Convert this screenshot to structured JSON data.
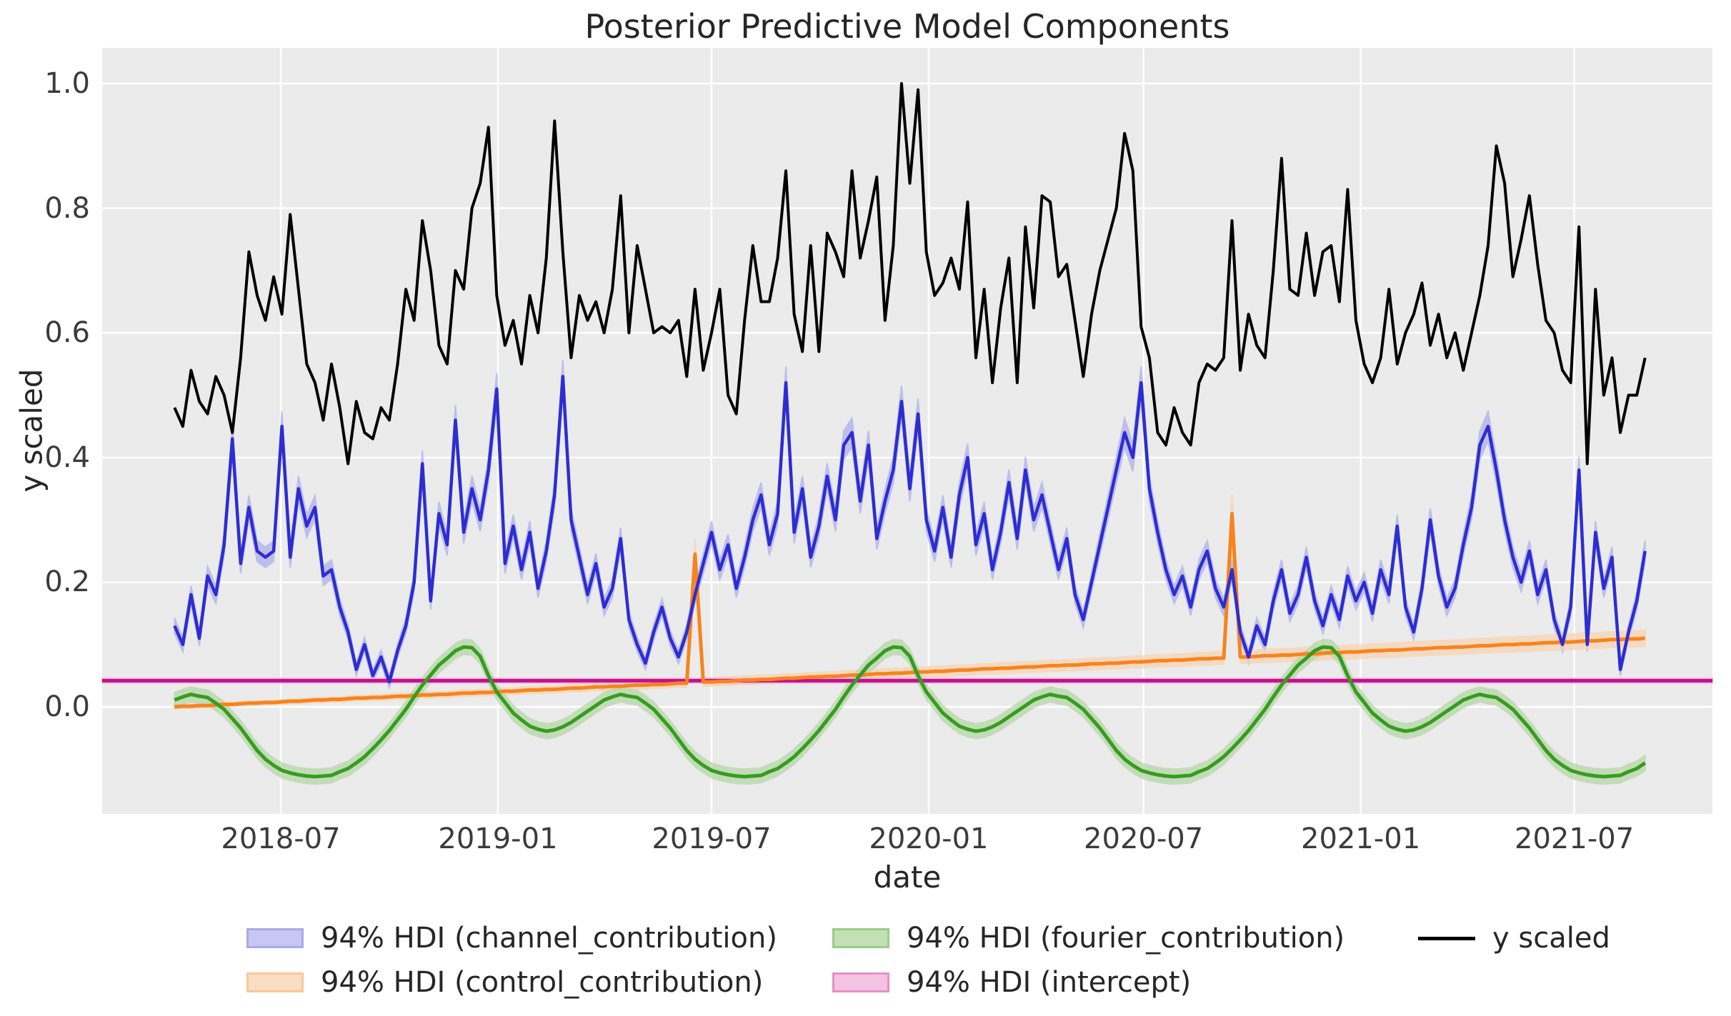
{
  "title": "Posterior Predictive Model Components",
  "xlabel": "date",
  "ylabel": "y scaled",
  "colors": {
    "figure_bg": "#ffffff",
    "plot_bg": "#ebebeb",
    "grid": "#ffffff",
    "y_scaled_line": "#000000",
    "channel_line": "#2d2dd2",
    "channel_band": "#b0b0ec",
    "control_line": "#f8831d",
    "control_band": "#f9d4b2",
    "fourier_line": "#379c1f",
    "fourier_band": "#b5d8a8",
    "intercept_line": "#c1118c",
    "intercept_band": "#eeb2da",
    "tick_text": "#3b3b3b",
    "label_text": "#262626"
  },
  "legend": {
    "items": [
      {
        "label": "94% HDI (channel_contribution)",
        "marker": "patch",
        "fill": "#c7c7f2",
        "edge": "#a9a9e8",
        "col": 0,
        "row": 0
      },
      {
        "label": "94% HDI (control_contribution)",
        "marker": "patch",
        "fill": "#faddc2",
        "edge": "#fbc79a",
        "col": 0,
        "row": 1
      },
      {
        "label": "94% HDI (fourier_contribution)",
        "marker": "patch",
        "fill": "#c2e0b4",
        "edge": "#98cc86",
        "col": 1,
        "row": 0
      },
      {
        "label": "94% HDI (intercept)",
        "marker": "patch",
        "fill": "#f3c3e2",
        "edge": "#e68fc8",
        "col": 1,
        "row": 1
      },
      {
        "label": "y scaled",
        "marker": "line",
        "fill": "#000000",
        "edge": "#000000",
        "col": 2,
        "row": 0
      }
    ]
  },
  "chart_data": {
    "type": "line",
    "title": "Posterior Predictive Model Components",
    "xlabel": "date",
    "ylabel": "y scaled",
    "grid": true,
    "legend_position": "below",
    "x_start_date": "2018-04-02",
    "x_freq_days": 7,
    "n_points": 179,
    "x_end_date": "2021-08-30",
    "ylim": [
      -0.171,
      1.056
    ],
    "xlim_dates": [
      "2018-01-31",
      "2021-10-26"
    ],
    "y_ticks": [
      "0.0",
      "0.2",
      "0.4",
      "0.6",
      "0.8",
      "1.0"
    ],
    "y_tick_values": [
      0.0,
      0.2,
      0.4,
      0.6,
      0.8,
      1.0
    ],
    "x_ticks": [
      "2018-07",
      "2019-01",
      "2019-07",
      "2020-01",
      "2020-07",
      "2021-01",
      "2021-07"
    ],
    "x_tick_day_offsets": [
      90,
      274,
      455,
      639,
      821,
      1005,
      1186
    ],
    "series": [
      {
        "name": "channel_contribution",
        "legend": "94% HDI (channel_contribution)",
        "hdi": "94%",
        "band_half_width": {
          "a": 0.008,
          "b": 0.035
        },
        "values": [
          0.13,
          0.1,
          0.18,
          0.11,
          0.21,
          0.18,
          0.26,
          0.43,
          0.23,
          0.32,
          0.25,
          0.24,
          0.25,
          0.45,
          0.24,
          0.35,
          0.29,
          0.32,
          0.21,
          0.22,
          0.16,
          0.12,
          0.06,
          0.1,
          0.05,
          0.08,
          0.04,
          0.09,
          0.13,
          0.2,
          0.39,
          0.17,
          0.31,
          0.26,
          0.46,
          0.28,
          0.35,
          0.3,
          0.38,
          0.51,
          0.23,
          0.29,
          0.22,
          0.28,
          0.19,
          0.25,
          0.34,
          0.53,
          0.3,
          0.24,
          0.18,
          0.23,
          0.16,
          0.19,
          0.27,
          0.14,
          0.1,
          0.07,
          0.12,
          0.16,
          0.11,
          0.08,
          0.12,
          0.18,
          0.23,
          0.28,
          0.22,
          0.26,
          0.19,
          0.24,
          0.3,
          0.34,
          0.26,
          0.31,
          0.52,
          0.28,
          0.35,
          0.24,
          0.29,
          0.37,
          0.3,
          0.42,
          0.44,
          0.33,
          0.42,
          0.27,
          0.33,
          0.38,
          0.49,
          0.35,
          0.47,
          0.3,
          0.25,
          0.32,
          0.24,
          0.34,
          0.4,
          0.26,
          0.31,
          0.22,
          0.28,
          0.36,
          0.27,
          0.38,
          0.3,
          0.34,
          0.28,
          0.22,
          0.27,
          0.18,
          0.14,
          0.2,
          0.26,
          0.32,
          0.38,
          0.44,
          0.4,
          0.52,
          0.35,
          0.28,
          0.22,
          0.18,
          0.21,
          0.16,
          0.22,
          0.25,
          0.19,
          0.16,
          0.22,
          0.12,
          0.08,
          0.13,
          0.1,
          0.17,
          0.22,
          0.15,
          0.18,
          0.24,
          0.17,
          0.13,
          0.18,
          0.14,
          0.21,
          0.17,
          0.2,
          0.15,
          0.22,
          0.18,
          0.29,
          0.16,
          0.12,
          0.19,
          0.3,
          0.21,
          0.16,
          0.19,
          0.26,
          0.32,
          0.42,
          0.45,
          0.38,
          0.3,
          0.24,
          0.2,
          0.25,
          0.18,
          0.22,
          0.14,
          0.1,
          0.16,
          0.38,
          0.1,
          0.28,
          0.19,
          0.24,
          0.06,
          0.12,
          0.17,
          0.25
        ]
      },
      {
        "name": "control_contribution",
        "legend": "94% HDI (control_contribution)",
        "hdi": "94%",
        "band_half_width": {
          "a": 0.003,
          "b": 0.09
        },
        "spikes": [
          {
            "date": "2019-06-17",
            "index": 63,
            "peak": 0.245
          },
          {
            "date": "2020-09-14",
            "index": 128,
            "peak": 0.31
          }
        ],
        "values": [
          0.0,
          0.001,
          0.001,
          0.002,
          0.002,
          0.003,
          0.004,
          0.004,
          0.005,
          0.006,
          0.006,
          0.007,
          0.007,
          0.008,
          0.009,
          0.009,
          0.01,
          0.011,
          0.011,
          0.012,
          0.012,
          0.013,
          0.014,
          0.014,
          0.015,
          0.015,
          0.016,
          0.017,
          0.017,
          0.018,
          0.019,
          0.019,
          0.02,
          0.02,
          0.021,
          0.022,
          0.022,
          0.023,
          0.023,
          0.024,
          0.025,
          0.025,
          0.026,
          0.027,
          0.027,
          0.028,
          0.028,
          0.029,
          0.03,
          0.03,
          0.031,
          0.032,
          0.032,
          0.033,
          0.033,
          0.034,
          0.035,
          0.035,
          0.036,
          0.036,
          0.037,
          0.038,
          0.038,
          0.245,
          0.04,
          0.04,
          0.041,
          0.041,
          0.042,
          0.043,
          0.043,
          0.044,
          0.044,
          0.045,
          0.046,
          0.046,
          0.047,
          0.048,
          0.048,
          0.049,
          0.049,
          0.05,
          0.051,
          0.051,
          0.052,
          0.053,
          0.053,
          0.054,
          0.054,
          0.055,
          0.056,
          0.056,
          0.057,
          0.057,
          0.058,
          0.059,
          0.059,
          0.06,
          0.061,
          0.061,
          0.062,
          0.062,
          0.063,
          0.064,
          0.064,
          0.065,
          0.066,
          0.066,
          0.067,
          0.067,
          0.068,
          0.069,
          0.069,
          0.07,
          0.07,
          0.071,
          0.072,
          0.072,
          0.073,
          0.074,
          0.074,
          0.075,
          0.075,
          0.076,
          0.077,
          0.077,
          0.078,
          0.078,
          0.31,
          0.08,
          0.08,
          0.081,
          0.082,
          0.082,
          0.083,
          0.083,
          0.084,
          0.085,
          0.085,
          0.086,
          0.087,
          0.087,
          0.088,
          0.088,
          0.089,
          0.09,
          0.09,
          0.091,
          0.091,
          0.092,
          0.093,
          0.093,
          0.094,
          0.095,
          0.095,
          0.096,
          0.096,
          0.097,
          0.098,
          0.098,
          0.099,
          0.1,
          0.1,
          0.101,
          0.101,
          0.102,
          0.103,
          0.103,
          0.104,
          0.104,
          0.105,
          0.106,
          0.106,
          0.107,
          0.108,
          0.108,
          0.109,
          0.109,
          0.11
        ]
      },
      {
        "name": "fourier_contribution",
        "legend": "94% HDI (fourier_contribution)",
        "hdi": "94%",
        "band_half_width": {
          "a": 0.012,
          "b": 0
        },
        "values": [
          0.011,
          0.016,
          0.02,
          0.017,
          0.015,
          0.006,
          -0.004,
          -0.019,
          -0.034,
          -0.052,
          -0.07,
          -0.084,
          -0.094,
          -0.102,
          -0.106,
          -0.109,
          -0.111,
          -0.112,
          -0.111,
          -0.11,
          -0.104,
          -0.099,
          -0.09,
          -0.08,
          -0.067,
          -0.053,
          -0.038,
          -0.021,
          -0.004,
          0.016,
          0.035,
          0.051,
          0.067,
          0.078,
          0.09,
          0.096,
          0.095,
          0.081,
          0.05,
          0.024,
          0.007,
          -0.01,
          -0.021,
          -0.031,
          -0.036,
          -0.039,
          -0.037,
          -0.032,
          -0.025,
          -0.016,
          -0.007,
          0.002,
          0.011,
          0.016,
          0.02,
          0.017,
          0.015,
          0.006,
          -0.004,
          -0.019,
          -0.034,
          -0.052,
          -0.07,
          -0.084,
          -0.094,
          -0.102,
          -0.106,
          -0.109,
          -0.111,
          -0.112,
          -0.111,
          -0.11,
          -0.104,
          -0.099,
          -0.09,
          -0.08,
          -0.067,
          -0.053,
          -0.038,
          -0.021,
          -0.004,
          0.016,
          0.035,
          0.051,
          0.067,
          0.078,
          0.09,
          0.096,
          0.095,
          0.081,
          0.05,
          0.024,
          0.007,
          -0.01,
          -0.021,
          -0.031,
          -0.036,
          -0.039,
          -0.037,
          -0.032,
          -0.025,
          -0.016,
          -0.007,
          0.002,
          0.011,
          0.016,
          0.02,
          0.017,
          0.015,
          0.006,
          -0.004,
          -0.019,
          -0.034,
          -0.052,
          -0.07,
          -0.084,
          -0.094,
          -0.102,
          -0.106,
          -0.109,
          -0.111,
          -0.112,
          -0.111,
          -0.11,
          -0.104,
          -0.099,
          -0.09,
          -0.08,
          -0.067,
          -0.053,
          -0.038,
          -0.021,
          -0.004,
          0.016,
          0.035,
          0.051,
          0.067,
          0.078,
          0.09,
          0.096,
          0.095,
          0.081,
          0.05,
          0.024,
          0.007,
          -0.01,
          -0.021,
          -0.031,
          -0.036,
          -0.039,
          -0.037,
          -0.032,
          -0.025,
          -0.016,
          -0.007,
          0.002,
          0.011,
          0.016,
          0.02,
          0.017,
          0.015,
          0.006,
          -0.004,
          -0.019,
          -0.034,
          -0.052,
          -0.07,
          -0.084,
          -0.094,
          -0.102,
          -0.106,
          -0.109,
          -0.111,
          -0.112,
          -0.111,
          -0.11,
          -0.104,
          -0.099,
          -0.09
        ]
      },
      {
        "name": "intercept",
        "legend": "94% HDI (intercept)",
        "hdi": "94%",
        "band_half_width": {
          "a": 0.004,
          "b": 0
        },
        "constant": 0.042,
        "full_axis_width": true
      },
      {
        "name": "y scaled",
        "legend": "y scaled",
        "band_half_width": null,
        "values": [
          0.48,
          0.45,
          0.54,
          0.49,
          0.47,
          0.53,
          0.5,
          0.44,
          0.56,
          0.73,
          0.66,
          0.62,
          0.69,
          0.63,
          0.79,
          0.67,
          0.55,
          0.52,
          0.46,
          0.55,
          0.48,
          0.39,
          0.49,
          0.44,
          0.43,
          0.48,
          0.46,
          0.55,
          0.67,
          0.62,
          0.78,
          0.7,
          0.58,
          0.55,
          0.7,
          0.67,
          0.8,
          0.84,
          0.93,
          0.66,
          0.58,
          0.62,
          0.55,
          0.66,
          0.6,
          0.72,
          0.94,
          0.73,
          0.56,
          0.66,
          0.62,
          0.65,
          0.6,
          0.67,
          0.82,
          0.6,
          0.74,
          0.67,
          0.6,
          0.61,
          0.6,
          0.62,
          0.53,
          0.67,
          0.54,
          0.6,
          0.67,
          0.5,
          0.47,
          0.62,
          0.74,
          0.65,
          0.65,
          0.72,
          0.86,
          0.63,
          0.57,
          0.74,
          0.57,
          0.76,
          0.73,
          0.69,
          0.86,
          0.72,
          0.78,
          0.85,
          0.62,
          0.74,
          1.0,
          0.84,
          0.99,
          0.73,
          0.66,
          0.68,
          0.72,
          0.67,
          0.81,
          0.56,
          0.67,
          0.52,
          0.64,
          0.72,
          0.52,
          0.77,
          0.64,
          0.82,
          0.81,
          0.69,
          0.71,
          0.62,
          0.53,
          0.63,
          0.7,
          0.75,
          0.8,
          0.92,
          0.86,
          0.61,
          0.56,
          0.44,
          0.42,
          0.48,
          0.44,
          0.42,
          0.52,
          0.55,
          0.54,
          0.56,
          0.78,
          0.54,
          0.63,
          0.58,
          0.56,
          0.7,
          0.88,
          0.67,
          0.66,
          0.76,
          0.66,
          0.73,
          0.74,
          0.65,
          0.83,
          0.62,
          0.55,
          0.52,
          0.56,
          0.67,
          0.55,
          0.6,
          0.63,
          0.68,
          0.58,
          0.63,
          0.56,
          0.6,
          0.54,
          0.6,
          0.66,
          0.74,
          0.9,
          0.84,
          0.69,
          0.75,
          0.82,
          0.71,
          0.62,
          0.6,
          0.54,
          0.52,
          0.77,
          0.39,
          0.67,
          0.5,
          0.56,
          0.44,
          0.5,
          0.5,
          0.56
        ]
      }
    ]
  }
}
